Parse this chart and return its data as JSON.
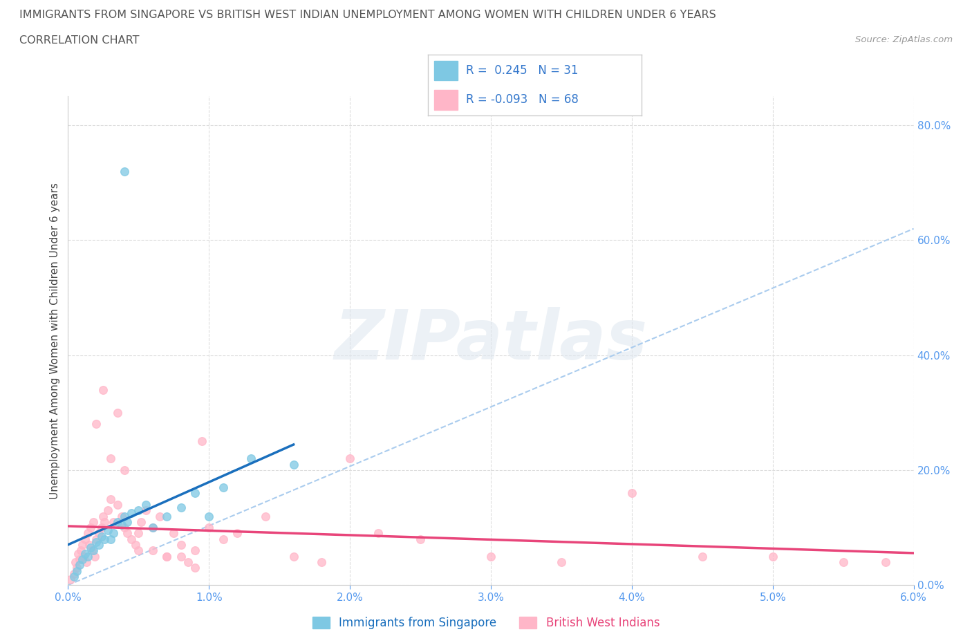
{
  "title": "IMMIGRANTS FROM SINGAPORE VS BRITISH WEST INDIAN UNEMPLOYMENT AMONG WOMEN WITH CHILDREN UNDER 6 YEARS",
  "subtitle": "CORRELATION CHART",
  "source": "Source: ZipAtlas.com",
  "ylabel": "Unemployment Among Women with Children Under 6 years",
  "xlim": [
    0.0,
    6.0
  ],
  "ylim": [
    0.0,
    85.0
  ],
  "xtick_vals": [
    0.0,
    1.0,
    2.0,
    3.0,
    4.0,
    5.0,
    6.0
  ],
  "ytick_vals": [
    0.0,
    20.0,
    40.0,
    60.0,
    80.0
  ],
  "series1_label": "Immigrants from Singapore",
  "series1_color": "#7ec8e3",
  "series1_line_color": "#1a6fbd",
  "series1_dash_color": "#7ec8e3",
  "series2_label": "British West Indians",
  "series2_color": "#ffb6c8",
  "series2_line_color": "#e8457a",
  "watermark": "ZIPatlas",
  "bg_color": "#ffffff",
  "grid_color": "#dddddd",
  "title_color": "#555555",
  "tick_color": "#5599ee",
  "ylabel_color": "#444444",
  "source_color": "#999999",
  "legend_border_color": "#cccccc",
  "legend_text_color": "#3377cc",
  "s1_x": [
    0.04,
    0.06,
    0.08,
    0.1,
    0.12,
    0.14,
    0.16,
    0.18,
    0.2,
    0.22,
    0.24,
    0.26,
    0.28,
    0.3,
    0.32,
    0.35,
    0.38,
    0.4,
    0.42,
    0.45,
    0.5,
    0.55,
    0.6,
    0.7,
    0.8,
    0.9,
    1.0,
    1.1,
    1.3,
    1.6,
    0.4
  ],
  "s1_y": [
    1.5,
    2.5,
    3.5,
    4.5,
    5.5,
    5.0,
    6.5,
    6.0,
    7.5,
    7.0,
    8.5,
    8.0,
    9.5,
    8.0,
    9.0,
    11.0,
    10.5,
    12.0,
    11.0,
    12.5,
    13.0,
    14.0,
    10.0,
    12.0,
    13.5,
    16.0,
    12.0,
    17.0,
    22.0,
    21.0,
    72.0
  ],
  "s2_x": [
    0.02,
    0.04,
    0.05,
    0.06,
    0.07,
    0.08,
    0.09,
    0.1,
    0.11,
    0.12,
    0.13,
    0.14,
    0.15,
    0.16,
    0.17,
    0.18,
    0.19,
    0.2,
    0.22,
    0.24,
    0.25,
    0.26,
    0.28,
    0.3,
    0.32,
    0.35,
    0.38,
    0.4,
    0.42,
    0.45,
    0.48,
    0.5,
    0.52,
    0.55,
    0.6,
    0.65,
    0.7,
    0.75,
    0.8,
    0.85,
    0.9,
    0.95,
    1.0,
    1.1,
    1.2,
    1.4,
    1.6,
    1.8,
    2.0,
    2.2,
    2.5,
    3.0,
    3.5,
    4.0,
    4.5,
    5.0,
    5.5,
    5.8,
    0.2,
    0.25,
    0.3,
    0.35,
    0.4,
    0.5,
    0.6,
    0.7,
    0.8,
    0.9
  ],
  "s2_y": [
    1.0,
    2.0,
    4.0,
    3.0,
    5.5,
    4.5,
    6.0,
    7.0,
    5.0,
    8.0,
    4.0,
    9.0,
    7.0,
    10.0,
    6.0,
    11.0,
    5.0,
    8.0,
    9.0,
    10.0,
    12.0,
    11.0,
    13.0,
    15.0,
    11.0,
    14.0,
    12.0,
    10.0,
    9.0,
    8.0,
    7.0,
    9.0,
    11.0,
    13.0,
    10.0,
    12.0,
    5.0,
    9.0,
    7.0,
    4.0,
    6.0,
    25.0,
    10.0,
    8.0,
    9.0,
    12.0,
    5.0,
    4.0,
    22.0,
    9.0,
    8.0,
    5.0,
    4.0,
    16.0,
    5.0,
    5.0,
    4.0,
    4.0,
    28.0,
    34.0,
    22.0,
    30.0,
    20.0,
    6.0,
    6.0,
    5.0,
    5.0,
    3.0
  ]
}
